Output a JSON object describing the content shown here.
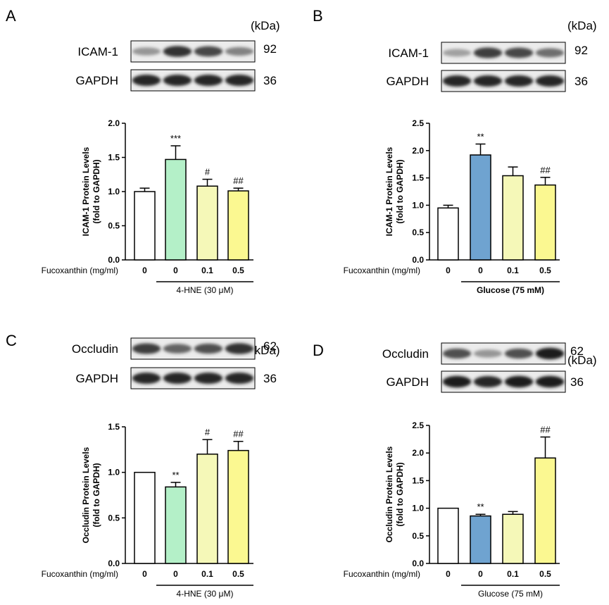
{
  "kda_label": "(kDa)",
  "gapdh_label": "GAPDH",
  "gapdh_mw": "36",
  "treatment_label": "Fucoxanthin (mg/ml)",
  "chart_data": [
    {
      "type": "bar",
      "panel": "A",
      "protein": "ICAM-1",
      "protein_mw": "92",
      "ylabel": [
        "ICAM-1 Protein Levels",
        "(fold to GAPDH)"
      ],
      "ylim": [
        0,
        2.0
      ],
      "yticks": [
        "0.0",
        "0.5",
        "1.0",
        "1.5",
        "2.0"
      ],
      "categories": [
        "0",
        "0",
        "0.1",
        "0.5"
      ],
      "values": [
        1.0,
        1.47,
        1.08,
        1.01
      ],
      "errors": [
        0.05,
        0.2,
        0.1,
        0.04
      ],
      "significance": [
        "",
        "***",
        "#",
        "##"
      ],
      "colors": [
        "#ffffff",
        "#b4f0c8",
        "#f5f8b8",
        "#fbf891"
      ],
      "group_label": "4-HNE (30 μM)",
      "group_bold": false,
      "band_intensity": [
        {
          "icam": [
            0.35,
            0.85,
            0.75,
            0.45
          ],
          "gapdh": [
            0.9,
            0.9,
            0.9,
            0.9
          ]
        }
      ]
    },
    {
      "type": "bar",
      "panel": "B",
      "protein": "ICAM-1",
      "protein_mw": "92",
      "ylabel": [
        "ICAM-1 Protein Levels",
        "(fold to GAPDH)"
      ],
      "ylim": [
        0,
        2.5
      ],
      "yticks": [
        "0.0",
        "0.5",
        "1.0",
        "1.5",
        "2.0",
        "2.5"
      ],
      "categories": [
        "0",
        "0",
        "0.1",
        "0.5"
      ],
      "values": [
        0.95,
        1.92,
        1.54,
        1.37
      ],
      "errors": [
        0.05,
        0.2,
        0.16,
        0.14
      ],
      "significance": [
        "",
        "**",
        "",
        "##"
      ],
      "colors": [
        "#ffffff",
        "#6fa3d0",
        "#f5f8b8",
        "#fbf891"
      ],
      "group_label": "Glucose (75 mM)",
      "group_bold": true,
      "band_intensity": [
        {
          "icam": [
            0.3,
            0.8,
            0.75,
            0.55
          ],
          "gapdh": [
            0.9,
            0.9,
            0.9,
            0.9
          ]
        }
      ]
    },
    {
      "type": "bar",
      "panel": "C",
      "protein": "Occludin",
      "protein_mw": "62",
      "ylabel": [
        "Occludin Protein Levels",
        "(fold to GAPDH)"
      ],
      "ylim": [
        0,
        1.5
      ],
      "yticks": [
        "0.0",
        "0.5",
        "1.0",
        "1.5"
      ],
      "categories": [
        "0",
        "0",
        "0.1",
        "0.5"
      ],
      "values": [
        1.0,
        0.84,
        1.2,
        1.24
      ],
      "errors": [
        0.0,
        0.05,
        0.16,
        0.1
      ],
      "significance": [
        "",
        "**",
        "#",
        "##"
      ],
      "colors": [
        "#ffffff",
        "#b4f0c8",
        "#f5f8b8",
        "#fbf891"
      ],
      "group_label": "4-HNE (30 μM)",
      "group_bold": false,
      "band_intensity": [
        {
          "icam": [
            0.8,
            0.6,
            0.7,
            0.85
          ],
          "gapdh": [
            0.9,
            0.9,
            0.9,
            0.9
          ]
        }
      ]
    },
    {
      "type": "bar",
      "panel": "D",
      "protein": "Occludin",
      "protein_mw": "62",
      "ylabel": [
        "Occludin Protein Levels",
        "(fold to GAPDH)"
      ],
      "ylim": [
        0,
        2.5
      ],
      "yticks": [
        "0.0",
        "0.5",
        "1.0",
        "1.5",
        "2.0",
        "2.5"
      ],
      "categories": [
        "0",
        "0",
        "0.1",
        "0.5"
      ],
      "values": [
        1.0,
        0.86,
        0.89,
        1.91
      ],
      "errors": [
        0.0,
        0.03,
        0.05,
        0.38
      ],
      "significance": [
        "",
        "**",
        "",
        "##"
      ],
      "colors": [
        "#ffffff",
        "#6fa3d0",
        "#f5f8b8",
        "#fbf891"
      ],
      "group_label": "Glucose (75 mM)",
      "group_bold": false,
      "band_intensity": [
        {
          "icam": [
            0.7,
            0.35,
            0.7,
            0.95
          ],
          "gapdh": [
            0.95,
            0.9,
            0.95,
            0.95
          ]
        }
      ]
    }
  ]
}
